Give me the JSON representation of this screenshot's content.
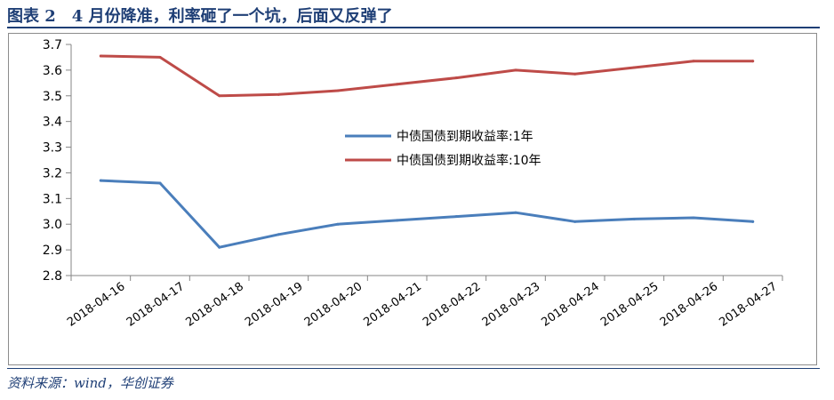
{
  "header": {
    "title": "图表 2　4 月份降准，利率砸了一个坑，后面又反弹了"
  },
  "footer": {
    "source": "资料来源：wind，华创证券"
  },
  "chart_data": {
    "type": "line",
    "categories": [
      "2018-04-16",
      "2018-04-17",
      "2018-04-18",
      "2018-04-19",
      "2018-04-20",
      "2018-04-21",
      "2018-04-22",
      "2018-04-23",
      "2018-04-24",
      "2018-04-25",
      "2018-04-26",
      "2018-04-27"
    ],
    "ylim": [
      2.8,
      3.7
    ],
    "yticks": [
      "2.8",
      "2.9",
      "3.0",
      "3.1",
      "3.2",
      "3.3",
      "3.4",
      "3.5",
      "3.6",
      "3.7"
    ],
    "grid": false,
    "legend_position": "center-right",
    "series": [
      {
        "name": "中债国债到期收益率:1年",
        "color": "#4A7EBB",
        "values": [
          3.17,
          3.16,
          2.91,
          2.96,
          3.0,
          3.015,
          3.03,
          3.045,
          3.01,
          3.02,
          3.025,
          3.01
        ]
      },
      {
        "name": "中债国债到期收益率:10年",
        "color": "#BE4B48",
        "values": [
          3.655,
          3.65,
          3.5,
          3.505,
          3.52,
          3.545,
          3.57,
          3.6,
          3.585,
          3.61,
          3.635,
          3.635
        ]
      }
    ]
  }
}
